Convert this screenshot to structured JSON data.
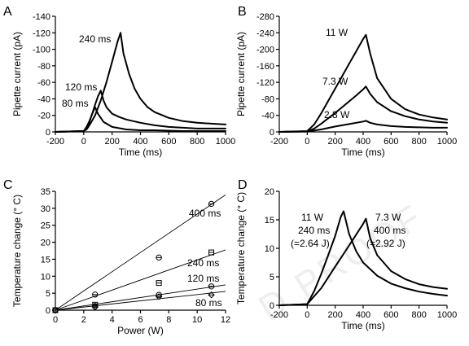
{
  "chart_data": [
    {
      "panel": "A",
      "type": "line",
      "xlabel": "Time (ms)",
      "ylabel": "Pipette current (pA)",
      "xlim": [
        -200,
        1000
      ],
      "ylim": [
        0,
        -140
      ],
      "xticks": [
        -200,
        0,
        200,
        400,
        600,
        800,
        1000
      ],
      "yticks": [
        0,
        -20,
        -40,
        -60,
        -80,
        -100,
        -120,
        -140
      ],
      "series": [
        {
          "name": "240 ms",
          "x": [
            -200,
            0,
            20,
            40,
            80,
            120,
            160,
            200,
            240,
            260,
            280,
            320,
            360,
            400,
            450,
            500,
            600,
            700,
            800,
            900,
            1000
          ],
          "y": [
            0,
            -1,
            -3,
            -8,
            -20,
            -38,
            -60,
            -85,
            -110,
            -120,
            -95,
            -70,
            -52,
            -40,
            -30,
            -24,
            -17,
            -13,
            -11,
            -10,
            -9
          ]
        },
        {
          "name": "120 ms",
          "x": [
            -200,
            0,
            20,
            40,
            60,
            80,
            100,
            120,
            140,
            160,
            200,
            250,
            300,
            400,
            500,
            600,
            700,
            800,
            900,
            1000
          ],
          "y": [
            0,
            -1,
            -4,
            -12,
            -22,
            -33,
            -43,
            -50,
            -38,
            -30,
            -22,
            -18,
            -15,
            -11,
            -8,
            -6,
            -5,
            -4,
            -4,
            -4
          ]
        },
        {
          "name": "80 ms",
          "x": [
            -200,
            0,
            20,
            40,
            60,
            80,
            100,
            140,
            200,
            300,
            400,
            500,
            700,
            1000
          ],
          "y": [
            0,
            -1,
            -6,
            -13,
            -22,
            -30,
            -22,
            -12,
            -6,
            -3,
            -2,
            -2,
            -1,
            -1
          ]
        }
      ]
    },
    {
      "panel": "B",
      "type": "line",
      "xlabel": "Time (ms)",
      "ylabel": "Pipette current (pA)",
      "xlim": [
        -200,
        1000
      ],
      "ylim": [
        0,
        -280
      ],
      "xticks": [
        -200,
        0,
        200,
        400,
        600,
        800,
        1000
      ],
      "yticks": [
        0,
        -40,
        -80,
        -120,
        -160,
        -200,
        -240,
        -280
      ],
      "series": [
        {
          "name": "11 W",
          "x": [
            -200,
            0,
            50,
            100,
            150,
            200,
            250,
            300,
            350,
            400,
            420,
            450,
            500,
            600,
            700,
            800,
            900,
            1000
          ],
          "y": [
            0,
            -2,
            -18,
            -45,
            -75,
            -105,
            -135,
            -165,
            -195,
            -225,
            -235,
            -190,
            -130,
            -80,
            -55,
            -42,
            -35,
            -30
          ]
        },
        {
          "name": "7.3 W",
          "x": [
            -200,
            0,
            50,
            100,
            150,
            200,
            250,
            300,
            350,
            400,
            420,
            450,
            500,
            600,
            700,
            800,
            900,
            1000
          ],
          "y": [
            0,
            -1,
            -8,
            -20,
            -33,
            -46,
            -60,
            -74,
            -88,
            -103,
            -110,
            -92,
            -72,
            -50,
            -38,
            -30,
            -25,
            -22
          ]
        },
        {
          "name": "2.8 W",
          "x": [
            -200,
            0,
            100,
            200,
            300,
            400,
            420,
            450,
            500,
            600,
            700,
            800,
            900,
            1000
          ],
          "y": [
            0,
            -1,
            -6,
            -13,
            -19,
            -25,
            -27,
            -22,
            -18,
            -14,
            -12,
            -11,
            -10,
            -10
          ]
        }
      ]
    },
    {
      "panel": "C",
      "type": "scatter",
      "xlabel": "Power (W)",
      "ylabel": "Temperature change (° C)",
      "xlim": [
        0,
        12
      ],
      "ylim": [
        0,
        35
      ],
      "xticks": [
        0,
        2,
        4,
        6,
        8,
        10,
        12
      ],
      "yticks": [
        0,
        5,
        10,
        15,
        20,
        25,
        30,
        35
      ],
      "series": [
        {
          "name": "400 ms",
          "marker": "circle",
          "x": [
            0,
            2.8,
            7.3,
            11
          ],
          "y": [
            0,
            4.6,
            15.5,
            31.3
          ],
          "fit_slope": 2.83
        },
        {
          "name": "240 ms",
          "marker": "square",
          "x": [
            0,
            2.8,
            7.3,
            11
          ],
          "y": [
            0,
            1.6,
            8.0,
            17.0
          ],
          "fit_slope": 1.48
        },
        {
          "name": "120 ms",
          "marker": "circle",
          "x": [
            0,
            2.8,
            7.3,
            11
          ],
          "y": [
            0,
            1.2,
            4.5,
            7.0
          ],
          "fit_slope": 0.62
        },
        {
          "name": "80 ms",
          "marker": "diamond",
          "x": [
            0,
            2.8,
            7.3,
            11
          ],
          "y": [
            0,
            0.9,
            4.0,
            4.5
          ],
          "fit_slope": 0.46
        }
      ]
    },
    {
      "panel": "D",
      "type": "line",
      "xlabel": "Time (ms)",
      "ylabel": "Temperature change (° C)",
      "xlim": [
        -200,
        1000
      ],
      "ylim": [
        0,
        20
      ],
      "xticks": [
        -200,
        0,
        200,
        400,
        600,
        800,
        1000
      ],
      "yticks": [
        0,
        5,
        10,
        15,
        20
      ],
      "series": [
        {
          "name": "11 W",
          "x": [
            -200,
            0,
            50,
            100,
            150,
            200,
            240,
            260,
            300,
            350,
            400,
            500,
            600,
            700,
            800,
            900,
            1000
          ],
          "y": [
            0,
            0.2,
            2.5,
            5.5,
            8.8,
            12.2,
            15.5,
            16.5,
            12.5,
            9.5,
            7.5,
            5.2,
            3.8,
            3.0,
            2.4,
            2.0,
            1.7
          ]
        },
        {
          "name": "7.3 W",
          "x": [
            -200,
            0,
            100,
            200,
            300,
            400,
            420,
            450,
            500,
            600,
            700,
            800,
            900,
            1000
          ],
          "y": [
            0,
            0.2,
            3.0,
            6.8,
            10.5,
            14.3,
            15.2,
            11.8,
            8.8,
            6.0,
            4.6,
            3.7,
            3.2,
            2.9
          ]
        }
      ]
    }
  ],
  "annotations": {
    "a_240": "240 ms",
    "a_120": "120 ms",
    "a_80": "80 ms",
    "b_11": "11 W",
    "b_73": "7.3 W",
    "b_28": "2.8 W",
    "c_400": "400 ms",
    "c_240": "240 ms",
    "c_120": "120 ms",
    "c_80": "80 ms",
    "d_left_1": "11 W",
    "d_left_2": "240 ms",
    "d_left_3": "(=2.64 J)",
    "d_right_1": "7.3 W",
    "d_right_2": "400 ms",
    "d_right_3": "(=2.92 J)"
  },
  "panel_letters": {
    "a": "A",
    "b": "B",
    "c": "C",
    "d": "D"
  },
  "watermark": "D PROOF"
}
